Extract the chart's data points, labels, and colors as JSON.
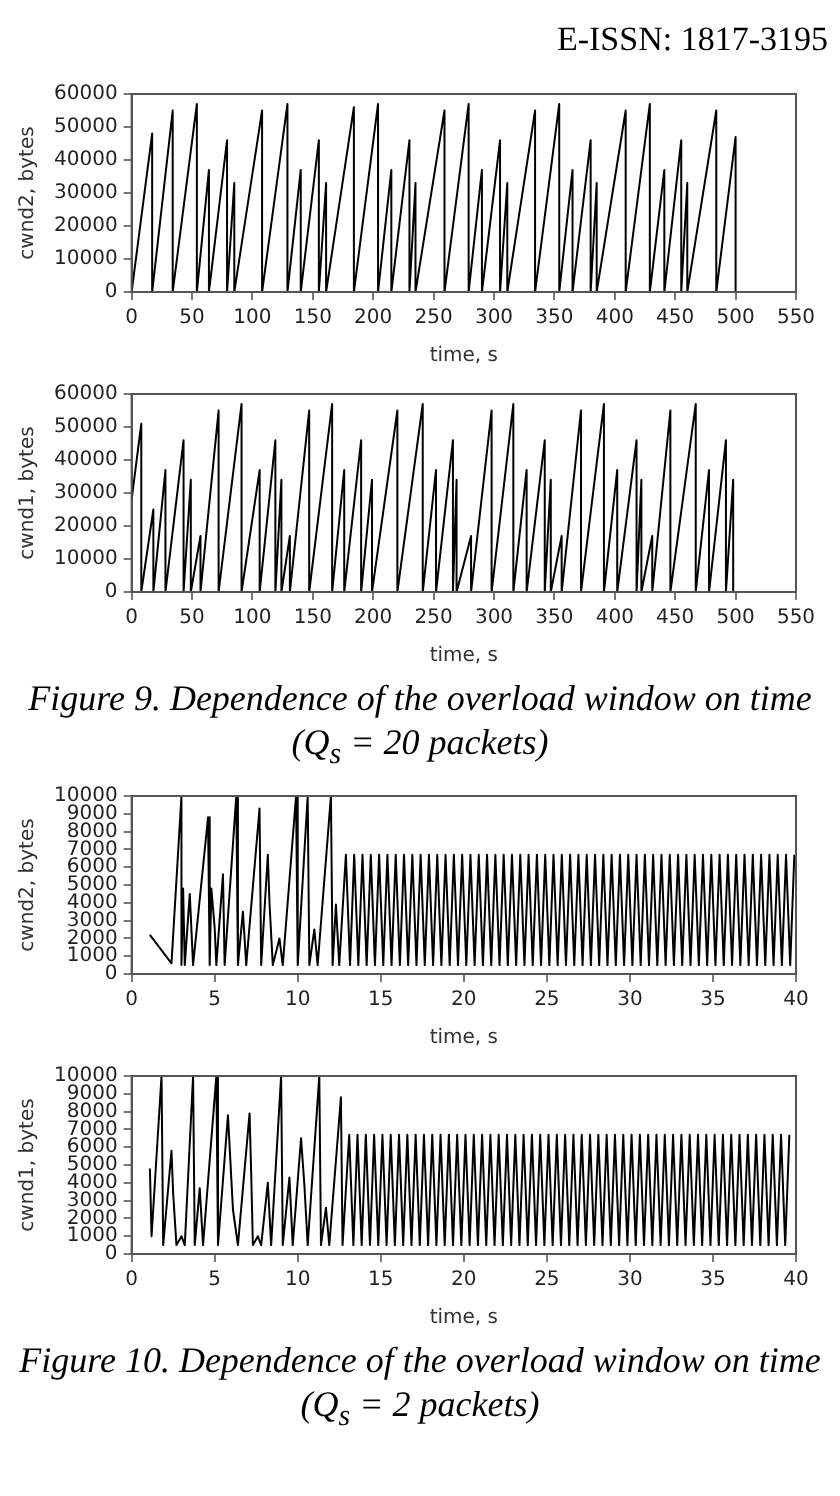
{
  "chart_data": [
    {
      "type": "line",
      "xlabel": "time, s",
      "ylabel": "cwnd2, bytes",
      "xlim": [
        0,
        550
      ],
      "xticks": [
        0,
        50,
        100,
        150,
        200,
        250,
        300,
        350,
        400,
        450,
        500,
        550
      ],
      "ylim": [
        0,
        60000
      ],
      "yticks": [
        0,
        10000,
        20000,
        30000,
        40000,
        50000,
        60000
      ],
      "annotations": [
        "E-ISSN: 1817-3195"
      ],
      "series": [
        {
          "color": "#000000",
          "x": [
            0,
            17,
            17,
            34,
            34,
            54,
            54,
            64,
            64,
            79,
            79,
            85,
            85,
            108,
            108,
            129,
            129,
            140,
            140,
            155,
            155,
            161,
            161,
            184,
            184,
            204,
            204,
            215,
            215,
            230,
            230,
            235,
            235,
            259,
            259,
            279,
            279,
            290,
            290,
            305,
            305,
            311,
            311,
            334,
            334,
            354,
            354,
            365,
            365,
            380,
            380,
            385,
            385,
            409,
            409,
            429,
            429,
            441,
            441,
            455,
            455,
            460,
            460,
            484,
            484,
            500,
            500
          ],
          "values": [
            0,
            48000,
            0,
            55000,
            0,
            57000,
            0,
            37000,
            0,
            46000,
            0,
            33000,
            0,
            55000,
            0,
            57000,
            0,
            37000,
            0,
            46000,
            0,
            33000,
            0,
            56000,
            0,
            57000,
            0,
            37000,
            0,
            46000,
            0,
            33000,
            0,
            55000,
            0,
            57000,
            0,
            37000,
            0,
            46000,
            0,
            33000,
            0,
            55000,
            0,
            57000,
            0,
            37000,
            0,
            46000,
            0,
            33000,
            0,
            55000,
            0,
            57000,
            0,
            37000,
            0,
            46000,
            0,
            33000,
            0,
            55000,
            0,
            47000,
            0
          ]
        }
      ]
    },
    {
      "type": "line",
      "xlabel": "time, s",
      "ylabel": "cwnd1, bytes",
      "xlim": [
        0,
        550
      ],
      "xticks": [
        0,
        50,
        100,
        150,
        200,
        250,
        300,
        350,
        400,
        450,
        500,
        550
      ],
      "ylim": [
        0,
        60000
      ],
      "yticks": [
        0,
        10000,
        20000,
        30000,
        40000,
        50000,
        60000
      ],
      "annotations": [
        "Figure 9. Dependence of the overload window on time",
        "(Q$_{s}$ = 20 packets)"
      ],
      "series": [
        {
          "color": "#000000",
          "x": [
            0,
            8,
            8,
            18,
            18,
            28,
            28,
            43,
            43,
            49,
            49,
            57,
            57,
            72,
            72,
            91,
            91,
            106,
            106,
            119,
            119,
            124,
            124,
            131,
            131,
            147,
            147,
            166,
            166,
            176,
            176,
            190,
            190,
            199,
            199,
            220,
            220,
            241,
            241,
            252,
            252,
            266,
            266,
            269,
            269,
            281,
            281,
            298,
            298,
            316,
            316,
            327,
            327,
            342,
            342,
            347,
            347,
            356,
            356,
            372,
            372,
            391,
            391,
            402,
            402,
            418,
            418,
            422,
            422,
            431,
            431,
            446,
            446,
            467,
            467,
            478,
            478,
            492,
            492,
            498,
            498
          ],
          "values": [
            28000,
            51000,
            0,
            25000,
            0,
            37000,
            0,
            46000,
            0,
            34000,
            0,
            17000,
            0,
            55000,
            0,
            57000,
            0,
            37000,
            0,
            46000,
            0,
            34000,
            0,
            17000,
            0,
            55000,
            0,
            57000,
            0,
            37000,
            0,
            46000,
            0,
            34000,
            0,
            55000,
            0,
            57000,
            0,
            37000,
            0,
            46000,
            0,
            34000,
            0,
            17000,
            0,
            55000,
            0,
            57000,
            0,
            37000,
            0,
            46000,
            0,
            34000,
            0,
            17000,
            0,
            55000,
            0,
            57000,
            0,
            37000,
            0,
            46000,
            0,
            34000,
            0,
            17000,
            0,
            55000,
            0,
            57000,
            0,
            37000,
            0,
            46000,
            0,
            34000,
            0
          ]
        }
      ]
    },
    {
      "type": "line",
      "xlabel": "time, s",
      "ylabel": "cwnd2, bytes",
      "xlim": [
        0,
        40
      ],
      "xticks": [
        0,
        5,
        10,
        15,
        20,
        25,
        30,
        35,
        40
      ],
      "ylim": [
        0,
        10000
      ],
      "yticks": [
        0,
        1000,
        2000,
        3000,
        4000,
        5000,
        6000,
        7000,
        8000,
        9000,
        10000
      ],
      "series": [
        {
          "color": "#000000",
          "x": [
            1.1,
            2.4,
            3.0,
            3.0,
            3.1,
            3.2,
            3.5,
            3.7,
            4.6,
            4.7,
            4.8,
            5.0,
            5.1,
            5.5,
            5.6,
            6.3,
            6.4,
            6.7,
            6.9,
            7.7,
            7.8,
            8.2,
            8.3,
            8.5,
            8.9,
            9.1,
            9.9,
            10.0,
            10.6,
            10.7,
            11.0,
            11.2,
            12.0,
            12.1,
            12.3,
            12.5,
            12.9,
            13.15,
            13.4,
            13.65,
            13.9,
            14.15,
            14.4,
            14.65,
            14.9,
            15.15,
            15.4,
            15.65,
            15.9,
            16.15,
            16.4,
            16.65,
            16.9,
            17.15,
            17.4,
            17.65,
            17.9,
            18.15,
            18.4,
            18.65,
            18.9,
            19.15,
            19.4,
            19.65,
            19.9,
            20.15,
            20.4,
            20.65,
            20.9,
            21.15,
            21.4,
            21.65,
            21.9,
            22.15,
            22.4,
            22.65,
            22.9,
            23.15,
            23.4,
            23.65,
            23.9,
            24.15,
            24.4,
            24.65,
            24.9,
            25.15,
            25.4,
            25.65,
            25.9,
            26.15,
            26.4,
            26.65,
            26.9,
            27.15,
            27.4,
            27.65,
            27.9,
            28.15,
            28.4,
            28.65,
            28.9,
            29.15,
            29.4,
            29.65,
            29.9,
            30.15,
            30.4,
            30.65,
            30.9,
            31.15,
            31.4,
            31.65,
            31.9,
            32.15,
            32.4,
            32.65,
            32.9,
            33.15,
            33.4,
            33.65,
            33.9,
            34.15,
            34.4,
            34.65,
            34.9,
            35.15,
            35.4,
            35.65,
            35.9,
            36.15,
            36.4,
            36.65,
            36.9,
            37.15,
            37.4,
            37.65,
            37.9,
            38.15,
            38.4,
            38.65,
            38.9,
            39.15,
            39.4,
            39.65,
            39.9
          ],
          "values": [
            2200,
            600,
            10000,
            500,
            4800,
            500,
            4500,
            500,
            8800,
            500,
            4800,
            2600,
            500,
            5600,
            500,
            10000,
            500,
            3500,
            500,
            9300,
            500,
            6700,
            4000,
            500,
            2000,
            500,
            10000,
            500,
            10000,
            500,
            2500,
            500,
            10000,
            500,
            3900,
            500,
            6700,
            500,
            6700,
            500,
            6700,
            500,
            6700,
            500,
            6700,
            500,
            6700,
            500,
            6700,
            500,
            6700,
            500,
            6700,
            500,
            6700,
            500,
            6700,
            500,
            6700,
            500,
            6700,
            500,
            6700,
            500,
            6700,
            500,
            6700,
            500,
            6700,
            500,
            6700,
            500,
            6700,
            500,
            6700,
            500,
            6700,
            500,
            6700,
            500,
            6700,
            500,
            6700,
            500,
            6700,
            500,
            6700,
            500,
            6700,
            500,
            6700,
            500,
            6700,
            500,
            6700,
            500,
            6700,
            500,
            6700,
            500,
            6700,
            500,
            6700,
            500,
            6700,
            500,
            6700,
            500,
            6700,
            500,
            6700,
            500,
            6700,
            500,
            6700,
            500,
            6700,
            500,
            6700,
            500,
            6700,
            500,
            6700,
            500,
            6700,
            500,
            6700,
            500,
            6700,
            500,
            6700,
            500,
            6700,
            500,
            6700,
            500,
            6700,
            500,
            6700,
            500,
            6700,
            500,
            6700,
            500,
            6700
          ]
        }
      ]
    },
    {
      "type": "line",
      "xlabel": "time, s",
      "ylabel": "cwnd1, bytes",
      "xlim": [
        0,
        40
      ],
      "xticks": [
        0,
        5,
        10,
        15,
        20,
        25,
        30,
        35,
        40
      ],
      "ylim": [
        0,
        10000
      ],
      "yticks": [
        0,
        1000,
        2000,
        3000,
        4000,
        5000,
        6000,
        7000,
        8000,
        9000,
        10000
      ],
      "annotations": [
        "Figure 10. Dependence of the overload window on time",
        "(Q$_{s}$ = 2 packets)"
      ],
      "series": [
        {
          "color": "#000000",
          "x": [
            1.1,
            1.2,
            1.8,
            1.9,
            2.4,
            2.5,
            2.7,
            3.0,
            3.2,
            3.7,
            3.8,
            4.1,
            4.3,
            5.1,
            5.2,
            5.8,
            6.1,
            6.4,
            7.1,
            7.2,
            7.3,
            7.6,
            7.8,
            8.2,
            8.4,
            9.0,
            9.1,
            9.5,
            9.7,
            10.2,
            10.4,
            10.6,
            11.3,
            11.4,
            11.7,
            11.9,
            12.6,
            12.7,
            13.1,
            13.35,
            13.6,
            13.85,
            14.1,
            14.35,
            14.6,
            14.85,
            15.1,
            15.35,
            15.6,
            15.85,
            16.1,
            16.35,
            16.6,
            16.85,
            17.1,
            17.35,
            17.6,
            17.85,
            18.1,
            18.35,
            18.6,
            18.85,
            19.1,
            19.35,
            19.6,
            19.85,
            20.1,
            20.35,
            20.6,
            20.85,
            21.1,
            21.35,
            21.6,
            21.85,
            22.1,
            22.35,
            22.6,
            22.85,
            23.1,
            23.35,
            23.6,
            23.85,
            24.1,
            24.35,
            24.6,
            24.85,
            25.1,
            25.35,
            25.6,
            25.85,
            26.1,
            26.35,
            26.6,
            26.85,
            27.1,
            27.35,
            27.6,
            27.85,
            28.1,
            28.35,
            28.6,
            28.85,
            29.1,
            29.35,
            29.6,
            29.85,
            30.1,
            30.35,
            30.6,
            30.85,
            31.1,
            31.35,
            31.6,
            31.85,
            32.1,
            32.35,
            32.6,
            32.85,
            33.1,
            33.35,
            33.6,
            33.85,
            34.1,
            34.35,
            34.6,
            34.85,
            35.1,
            35.35,
            35.6,
            35.85,
            36.1,
            36.35,
            36.6,
            36.85,
            37.1,
            37.35,
            37.6,
            37.85,
            38.1,
            38.35,
            38.6,
            38.85,
            39.1,
            39.35,
            39.6
          ],
          "values": [
            4800,
            1000,
            10000,
            500,
            5800,
            3400,
            500,
            1000,
            500,
            10000,
            500,
            3700,
            500,
            10000,
            500,
            7800,
            2500,
            500,
            7900,
            4500,
            500,
            1000,
            500,
            4000,
            500,
            10000,
            500,
            4300,
            500,
            6500,
            3900,
            500,
            10000,
            500,
            2600,
            500,
            8800,
            500,
            6700,
            500,
            6700,
            500,
            6700,
            500,
            6700,
            500,
            6700,
            500,
            6700,
            500,
            6700,
            500,
            6700,
            500,
            6700,
            500,
            6700,
            500,
            6700,
            500,
            6700,
            500,
            6700,
            500,
            6700,
            500,
            6700,
            500,
            6700,
            500,
            6700,
            500,
            6700,
            500,
            6700,
            500,
            6700,
            500,
            6700,
            500,
            6700,
            500,
            6700,
            500,
            6700,
            500,
            6700,
            500,
            6700,
            500,
            6700,
            500,
            6700,
            500,
            6700,
            500,
            6700,
            500,
            6700,
            500,
            6700,
            500,
            6700,
            500,
            6700,
            500,
            6700,
            500,
            6700,
            500,
            6700,
            500,
            6700,
            500,
            6700,
            500,
            6700,
            500,
            6700,
            500,
            6700,
            500,
            6700,
            500,
            6700,
            500,
            6700,
            500,
            6700,
            500,
            6700,
            500,
            6700,
            500,
            6700,
            500,
            6700,
            500,
            6700,
            500,
            6700,
            500,
            6700,
            500,
            6700
          ]
        }
      ]
    }
  ]
}
